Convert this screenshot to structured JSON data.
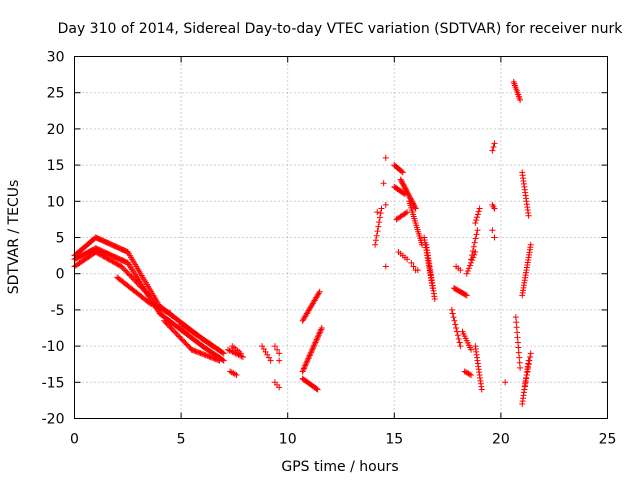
{
  "chart_data": {
    "type": "scatter",
    "title": "Day 310 of 2014, Sidereal Day-to-day VTEC variation (SDTVAR) for receiver nurk",
    "xlabel": "GPS time / hours",
    "ylabel": "SDTVAR / TECUs",
    "xlim": [
      0,
      25
    ],
    "ylim": [
      -20,
      30
    ],
    "xticks": [
      0,
      5,
      10,
      15,
      20,
      25
    ],
    "yticks": [
      -20,
      -15,
      -10,
      -5,
      0,
      5,
      10,
      15,
      20,
      25,
      30
    ],
    "grid": true,
    "marker": "+",
    "colors": {
      "points": "#ff0000",
      "axis": "#000000",
      "grid": "#a0a0a0"
    },
    "segments": [
      {
        "x0": 0.0,
        "x1": 1.0,
        "y0": 2.5,
        "y1": 5.0,
        "step": 0.05
      },
      {
        "x0": 1.0,
        "x1": 2.5,
        "y0": 5.0,
        "y1": 3.0,
        "step": 0.05
      },
      {
        "x0": 2.5,
        "x1": 4.0,
        "y0": 3.0,
        "y1": -4.5,
        "step": 0.05
      },
      {
        "x0": 4.0,
        "x1": 6.0,
        "y0": -4.5,
        "y1": -9.0,
        "step": 0.05
      },
      {
        "x0": 6.0,
        "x1": 7.0,
        "y0": -9.0,
        "y1": -11.0,
        "step": 0.05
      },
      {
        "x0": 0.0,
        "x1": 1.0,
        "y0": 2.0,
        "y1": 3.5,
        "step": 0.05
      },
      {
        "x0": 1.0,
        "x1": 2.5,
        "y0": 3.5,
        "y1": 1.5,
        "step": 0.05
      },
      {
        "x0": 2.5,
        "x1": 4.0,
        "y0": 1.5,
        "y1": -5.5,
        "step": 0.05
      },
      {
        "x0": 4.0,
        "x1": 6.0,
        "y0": -5.5,
        "y1": -10.0,
        "step": 0.05
      },
      {
        "x0": 6.0,
        "x1": 7.0,
        "y0": -10.0,
        "y1": -12.0,
        "step": 0.05
      },
      {
        "x0": 0.0,
        "x1": 1.0,
        "y0": 1.0,
        "y1": 3.0,
        "step": 0.06
      },
      {
        "x0": 1.0,
        "x1": 2.2,
        "y0": 3.0,
        "y1": 1.0,
        "step": 0.06
      },
      {
        "x0": 2.2,
        "x1": 3.5,
        "y0": 1.0,
        "y1": -3.0,
        "step": 0.06
      },
      {
        "x0": 2.0,
        "x1": 3.5,
        "y0": -0.5,
        "y1": -4.0,
        "step": 0.06
      },
      {
        "x0": 3.5,
        "x1": 4.5,
        "y0": -4.0,
        "y1": -5.5,
        "step": 0.06
      },
      {
        "x0": 4.2,
        "x1": 5.5,
        "y0": -6.5,
        "y1": -10.5,
        "step": 0.06
      },
      {
        "x0": 5.5,
        "x1": 6.8,
        "y0": -10.5,
        "y1": -12.0,
        "step": 0.06
      },
      {
        "x0": 5.0,
        "x1": 6.5,
        "y0": -7.0,
        "y1": -10.0,
        "step": 0.06
      },
      {
        "x0": 7.2,
        "x1": 7.9,
        "y0": -10.5,
        "y1": -11.5,
        "step": 0.07
      },
      {
        "x0": 7.4,
        "x1": 7.8,
        "y0": -10.0,
        "y1": -11.0,
        "step": 0.08
      },
      {
        "x0": 7.3,
        "x1": 7.6,
        "y0": -13.5,
        "y1": -14.0,
        "step": 0.08
      },
      {
        "x0": 8.8,
        "x1": 9.2,
        "y0": -10.0,
        "y1": -12.0,
        "step": 0.08
      },
      {
        "x0": 9.4,
        "x1": 9.6,
        "y0": -10.0,
        "y1": -11.0,
        "step": 0.1
      },
      {
        "x0": 9.4,
        "x1": 9.6,
        "y0": -15.0,
        "y1": -15.7,
        "step": 0.1
      },
      {
        "x0": 10.7,
        "x1": 11.5,
        "y0": -6.5,
        "y1": -2.5,
        "step": 0.04
      },
      {
        "x0": 10.7,
        "x1": 11.6,
        "y0": -13.5,
        "y1": -7.5,
        "step": 0.03
      },
      {
        "x0": 10.7,
        "x1": 11.4,
        "y0": -14.5,
        "y1": -16.0,
        "step": 0.05
      },
      {
        "x0": 14.1,
        "x1": 14.4,
        "y0": 4.0,
        "y1": 9.0,
        "step": 0.04
      },
      {
        "x0": 15.0,
        "x1": 15.4,
        "y0": 15.0,
        "y1": 14.0,
        "step": 0.05
      },
      {
        "x0": 15.0,
        "x1": 15.5,
        "y0": 12.0,
        "y1": 11.0,
        "step": 0.05
      },
      {
        "x0": 15.2,
        "x1": 15.6,
        "y0": 3.0,
        "y1": 2.0,
        "step": 0.1
      },
      {
        "x0": 15.3,
        "x1": 16.0,
        "y0": 13.0,
        "y1": 9.0,
        "step": 0.03
      },
      {
        "x0": 15.1,
        "x1": 15.6,
        "y0": 7.5,
        "y1": 8.5,
        "step": 0.06
      },
      {
        "x0": 15.7,
        "x1": 16.3,
        "y0": 10.0,
        "y1": 4.0,
        "step": 0.03
      },
      {
        "x0": 15.8,
        "x1": 16.0,
        "y0": 1.5,
        "y1": 0.5,
        "step": 0.1
      },
      {
        "x0": 16.4,
        "x1": 16.8,
        "y0": 5.0,
        "y1": -2.0,
        "step": 0.02
      },
      {
        "x0": 16.5,
        "x1": 16.9,
        "y0": 4.0,
        "y1": -3.5,
        "step": 0.02
      },
      {
        "x0": 17.7,
        "x1": 18.1,
        "y0": -5.0,
        "y1": -10.0,
        "step": 0.04
      },
      {
        "x0": 17.8,
        "x1": 18.4,
        "y0": -2.0,
        "y1": -3.0,
        "step": 0.05
      },
      {
        "x0": 17.9,
        "x1": 18.1,
        "y0": 1.0,
        "y1": 0.5,
        "step": 0.1
      },
      {
        "x0": 18.2,
        "x1": 18.6,
        "y0": -8.0,
        "y1": -10.5,
        "step": 0.05
      },
      {
        "x0": 18.3,
        "x1": 18.6,
        "y0": -13.5,
        "y1": -14.0,
        "step": 0.06
      },
      {
        "x0": 18.4,
        "x1": 18.8,
        "y0": 0.0,
        "y1": 3.0,
        "step": 0.05
      },
      {
        "x0": 18.6,
        "x1": 18.9,
        "y0": 2.0,
        "y1": 6.0,
        "step": 0.04
      },
      {
        "x0": 18.8,
        "x1": 19.0,
        "y0": 7.0,
        "y1": 9.0,
        "step": 0.04
      },
      {
        "x0": 18.8,
        "x1": 19.1,
        "y0": -10.0,
        "y1": -16.0,
        "step": 0.02
      },
      {
        "x0": 19.6,
        "x1": 19.7,
        "y0": 17.0,
        "y1": 18.0,
        "step": 0.05
      },
      {
        "x0": 19.6,
        "x1": 19.7,
        "y0": 9.5,
        "y1": 9.0,
        "step": 0.05
      },
      {
        "x0": 19.6,
        "x1": 19.7,
        "y0": 6.0,
        "y1": 5.0,
        "step": 0.1
      },
      {
        "x0": 20.6,
        "x1": 20.9,
        "y0": 26.5,
        "y1": 24.0,
        "step": 0.03
      },
      {
        "x0": 20.7,
        "x1": 20.9,
        "y0": -6.0,
        "y1": -13.0,
        "step": 0.02
      },
      {
        "x0": 21.0,
        "x1": 21.3,
        "y0": 14.0,
        "y1": 8.0,
        "step": 0.02
      },
      {
        "x0": 21.0,
        "x1": 21.4,
        "y0": -3.0,
        "y1": 4.0,
        "step": 0.02
      },
      {
        "x0": 21.0,
        "x1": 21.3,
        "y0": -18.0,
        "y1": -12.0,
        "step": 0.02
      },
      {
        "x0": 21.1,
        "x1": 21.4,
        "y0": -16.0,
        "y1": -11.0,
        "step": 0.03
      }
    ],
    "isolated_points": [
      {
        "x": 14.6,
        "y": 1.0
      },
      {
        "x": 14.6,
        "y": 9.5
      },
      {
        "x": 14.5,
        "y": 12.5
      },
      {
        "x": 14.6,
        "y": 16.0
      },
      {
        "x": 14.2,
        "y": 8.5
      },
      {
        "x": 16.1,
        "y": 0.5
      },
      {
        "x": 9.6,
        "y": -12.0
      },
      {
        "x": 20.2,
        "y": -15.0
      }
    ]
  }
}
